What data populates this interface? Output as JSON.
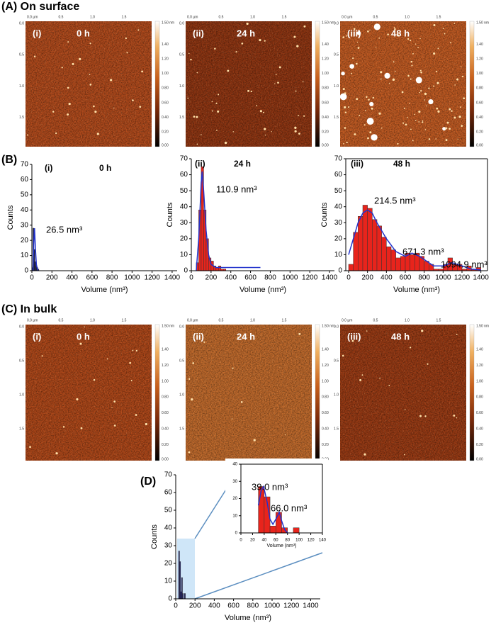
{
  "figure": {
    "panels": [
      {
        "label": "(A) On surface",
        "images": [
          {
            "label": "(i)",
            "time": "0 h"
          },
          {
            "label": "(ii)",
            "time": "24 h"
          },
          {
            "label": "(iii)",
            "time": "48 h"
          }
        ]
      },
      {
        "label": "(B)"
      },
      {
        "label": "(C) In bulk",
        "images": [
          {
            "label": "(i)",
            "time": "0 h"
          },
          {
            "label": "(ii)",
            "time": "24 h"
          },
          {
            "label": "(iii)",
            "time": "48 h"
          }
        ]
      },
      {
        "label": "(D)"
      }
    ],
    "afm_axis": {
      "top_ticks": [
        "0.0 µm",
        "0.5",
        "1.0",
        "1.5"
      ],
      "left_ticks": [
        "0.0",
        "0.5",
        "1.0",
        "1.5"
      ],
      "colorbar_ticks": [
        "1.50 nm",
        "1.40",
        "1.20",
        "1.00",
        "0.80",
        "0.60",
        "0.40",
        "0.20",
        "0.00"
      ]
    }
  },
  "chart_data": [
    {
      "type": "histogram",
      "panel_label": "(i)",
      "subtitle": "0 h",
      "xlabel": "Volume (nm³)",
      "ylabel": "Counts",
      "bins": [
        0,
        10,
        20,
        30,
        40,
        50,
        60,
        70
      ],
      "counts": [
        2,
        28,
        14,
        6,
        3,
        2,
        1
      ],
      "color": "#1a1a4a",
      "fit": {
        "x": [
          10,
          20,
          26.5,
          35,
          45,
          60
        ],
        "values": [
          0,
          20,
          28,
          15,
          4,
          0
        ],
        "color": "#2233cc"
      },
      "annotations": [
        "26.5 nm³"
      ],
      "xlim": [
        0,
        1450
      ],
      "xticks": [
        0,
        200,
        400,
        600,
        800,
        1000,
        1200,
        1400
      ],
      "ylim": [
        0,
        70
      ],
      "yticks": [
        0,
        10,
        20,
        30,
        40,
        50,
        60,
        70
      ]
    },
    {
      "type": "histogram",
      "panel_label": "(ii)",
      "subtitle": "24 h",
      "xlabel": "Volume (nm³)",
      "ylabel": "Counts",
      "bins": [
        50,
        75,
        100,
        125,
        150,
        175,
        200,
        225,
        250,
        275,
        300,
        325,
        350
      ],
      "counts": [
        5,
        38,
        65,
        38,
        20,
        8,
        6,
        3,
        2,
        3,
        1,
        1
      ],
      "color": "#e8241c",
      "fit": {
        "x": [
          50,
          75,
          100,
          110,
          125,
          150,
          175,
          200,
          250,
          300,
          400,
          500,
          600,
          700
        ],
        "values": [
          0,
          20,
          55,
          62,
          50,
          25,
          10,
          4,
          2,
          2,
          2,
          2,
          2,
          2
        ],
        "color": "#2233cc"
      },
      "annotations": [
        "110.9 nm³"
      ],
      "xlim": [
        0,
        1450
      ],
      "xticks": [
        0,
        200,
        400,
        600,
        800,
        1000,
        1200,
        1400
      ],
      "ylim": [
        0,
        70
      ],
      "yticks": [
        0,
        10,
        20,
        30,
        40,
        50,
        60,
        70
      ]
    },
    {
      "type": "histogram",
      "panel_label": "(iii)",
      "subtitle": "48 h",
      "xlabel": "Volume (nm³)",
      "ylabel": "Counts",
      "bins": [
        0,
        50,
        100,
        150,
        200,
        250,
        300,
        350,
        400,
        450,
        500,
        550,
        600,
        650,
        700,
        750,
        800,
        850,
        900,
        950,
        1000,
        1050,
        1100,
        1150,
        1200,
        1250,
        1300,
        1350,
        1400
      ],
      "counts": [
        4,
        24,
        34,
        41,
        39,
        32,
        28,
        21,
        15,
        13,
        8,
        9,
        11,
        10,
        11,
        9,
        6,
        4,
        1,
        1,
        4,
        8,
        4,
        4,
        1,
        3,
        1,
        2
      ],
      "color": "#e8241c",
      "fit": {
        "x": [
          0,
          50,
          100,
          150,
          200,
          250,
          300,
          400,
          500,
          600,
          671,
          750,
          900,
          1000,
          1095,
          1200,
          1300,
          1400
        ],
        "values": [
          10,
          20,
          30,
          36,
          38,
          36,
          30,
          20,
          12,
          9,
          11,
          9,
          3,
          3,
          5,
          3,
          1,
          0.5
        ],
        "color": "#2233cc"
      },
      "annotations": [
        "214.5 nm³",
        "671.3 nm³",
        "1094.9 nm³"
      ],
      "xlim": [
        -30,
        1470
      ],
      "xticks": [
        0,
        200,
        400,
        600,
        800,
        1000,
        1200,
        1400
      ],
      "ylim": [
        0,
        70
      ],
      "yticks": [
        0,
        10,
        20,
        30,
        40,
        50,
        60,
        70
      ]
    },
    {
      "type": "histogram",
      "xlabel": "Volume (nm³)",
      "ylabel": "Counts",
      "bins": [
        30,
        40,
        50,
        60,
        70,
        80,
        90,
        100
      ],
      "counts": [
        27,
        21,
        4,
        12,
        3,
        0,
        3
      ],
      "color": "#1a1a6a",
      "xlim": [
        0,
        1500
      ],
      "xticks": [
        0,
        200,
        400,
        600,
        800,
        1000,
        1200,
        1400
      ],
      "ylim": [
        0,
        70
      ],
      "yticks": [
        0,
        10,
        20,
        30,
        40,
        50,
        60,
        70
      ]
    },
    {
      "type": "histogram",
      "xlabel": "Volume (nm³)",
      "bins": [
        30,
        40,
        50,
        60,
        70,
        80,
        90,
        100
      ],
      "counts": [
        27,
        21,
        4,
        12,
        3,
        0,
        3
      ],
      "color": "#e8241c",
      "fit": {
        "x": [
          30,
          35,
          39,
          45,
          50,
          55,
          60,
          66,
          70,
          75,
          80
        ],
        "values": [
          16,
          25,
          27,
          18,
          8,
          5,
          8,
          12,
          7,
          2,
          0
        ],
        "color": "#2233cc"
      },
      "annotations": [
        "39.0 nm³",
        "66.0 nm³"
      ],
      "xlim": [
        0,
        140
      ],
      "xticks": [
        0,
        20,
        40,
        60,
        80,
        100,
        120,
        140
      ],
      "ylim": [
        0,
        40
      ],
      "yticks": [
        0,
        10,
        20,
        30,
        40
      ]
    }
  ]
}
